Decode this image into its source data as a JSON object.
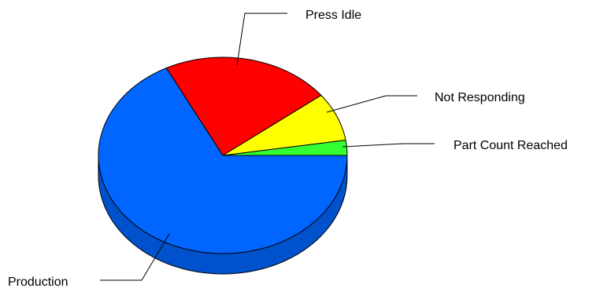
{
  "chart_data": {
    "type": "pie",
    "style": "3d",
    "title": "",
    "start_direction": "right (3 o'clock), slices proceed counter-clockwise",
    "slices": [
      {
        "label": "Part Count Reached",
        "value": 2.5,
        "color": "#33ff33",
        "side_color": "#22bb22"
      },
      {
        "label": "Not Responding",
        "value": 8,
        "color": "#ffff00",
        "side_color": "#cccc00"
      },
      {
        "label": "Press Idle",
        "value": 22,
        "color": "#ff0000",
        "side_color": "#cc0000"
      },
      {
        "label": "Production",
        "value": 67.5,
        "color": "#0066ff",
        "side_color": "#0052cc"
      }
    ],
    "legend": "none (leader-line labels)"
  }
}
